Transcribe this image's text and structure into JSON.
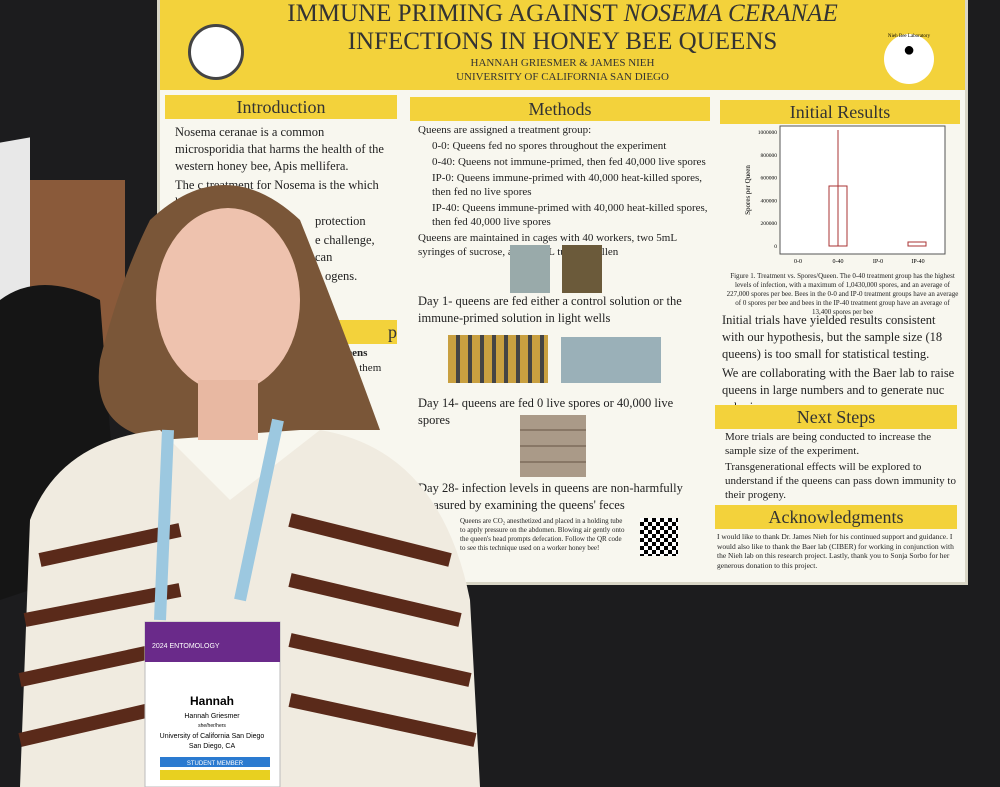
{
  "poster": {
    "header": {
      "title_line1_a": "IMMUNE PRIMING AGAINST ",
      "title_line1_b": "NOSEMA CERANAE",
      "title_line2": "INFECTIONS IN HONEY BEE QUEENS",
      "authors": "HANNAH GRIESMER & JAMES NIEH",
      "affiliation": "UNIVERSITY OF CALIFORNIA SAN DIEGO",
      "logo_text": "Nieh Bee Laboratory"
    },
    "introduction": {
      "heading": "Introduction",
      "items": [
        "Nosema ceranae is a common microsporidia that harms the health of the western honey bee, Apis mellifera.",
        "The c",
        "treatment for Nosema is the",
        "which has limited",
        "protection",
        "e challenge, can",
        "ogens."
      ],
      "second_heading": "p",
      "second_items": [
        "queens",
        "low them"
      ]
    },
    "methods": {
      "heading": "Methods",
      "items": [
        "Queens are assigned a treatment group:",
        "0-0: Queens fed no spores throughout the experiment",
        "0-40: Queens not immune-primed, then fed 40,000 live spores",
        "IP-0: Queens immune-primed with 40,000 heat-killed spores, then fed no live spores",
        "IP-40: Queens immune-primed with 40,000 heat-killed spores, then fed 40,000 live spores",
        "Queens are maintained in cages with 40 workers, two 5mL syringes of sucrose, and a 1mL tube of pollen",
        "Day 1- queens are fed either a control solution or the immune-primed solution in light wells",
        "Day 14- queens are fed 0 live spores or 40,000 live spores",
        "Day 28- infection levels in queens are non-harmfully measured by examining the queens' feces"
      ],
      "caption": "Queens are CO₂ anesthetized and placed in a holding tube to apply pressure on the abdomen. Blowing air gently onto the queen's head prompts defecation. Follow the QR code to see this technique used on a worker honey bee!"
    },
    "results": {
      "heading": "Initial Results",
      "chart": {
        "ylabel": "Spores per Queen",
        "yticks": [
          "1000000",
          "800000",
          "600000",
          "400000",
          "200000",
          "0"
        ],
        "categories": [
          "0-0",
          "0-40",
          "IP-0",
          "IP-40"
        ]
      },
      "caption": "Figure 1. Treatment vs. Spores/Queen. The 0-40 treatment group has the highest levels of infection, with a maximum of 1,0430,000 spores, and an average of 227,000 spores per bee. Bees in the 0-0 and IP-0 treatment groups have an average of 0 spores per bee and bees in the IP-40 treatment group have an average of 13,400 spores per bee",
      "items": [
        "Initial trials have yielded results consistent with our hypothesis, but the sample size (18 queens) is too small for statistical testing.",
        "We are collaborating with the Baer lab to raise queens in large numbers and to generate nuc colonies."
      ]
    },
    "next_steps": {
      "heading": "Next Steps",
      "items": [
        "More trials are being conducted to increase the sample size of the experiment.",
        "Transgenerational effects will be explored to understand if the queens can pass down immunity to their progeny."
      ]
    },
    "acknowledgments": {
      "heading": "Acknowledgments",
      "text": "I would like to thank Dr. James Nieh for his continued support and guidance. I would also like to thank the Baer lab (CIBER) for working in conjunction with the Nieh lab on this research project. Lastly, thank you to Sonja Sorbo for her generous donation to this project."
    }
  },
  "badge": {
    "event": "2024 ENTOMOLOGY",
    "first_name": "Hannah",
    "full_name": "Hannah Griesmer",
    "pronouns": "she/her/hers",
    "institution": "University of California San Diego",
    "location": "San Diego, CA",
    "member": "STUDENT MEMBER"
  }
}
